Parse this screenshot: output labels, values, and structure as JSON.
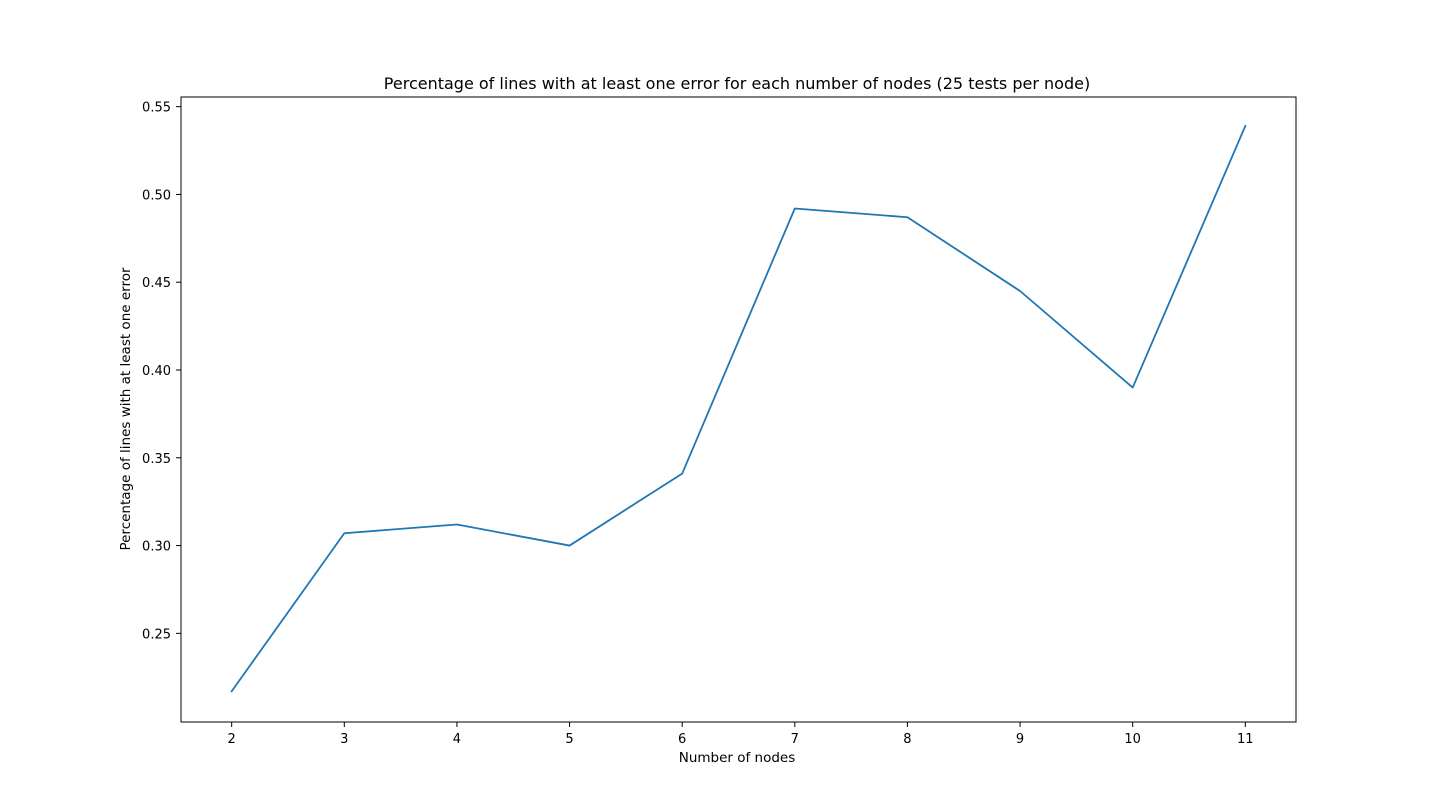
{
  "chart_data": {
    "type": "line",
    "title": "Percentage of lines with at least one error for each number of nodes (25 tests per node)",
    "xlabel": "Number of nodes",
    "ylabel": "Percentage of lines with at least one error",
    "x": [
      2,
      3,
      4,
      5,
      6,
      7,
      8,
      9,
      10,
      11
    ],
    "series": [
      {
        "values": [
          0.217,
          0.307,
          0.312,
          0.3,
          0.341,
          0.492,
          0.487,
          0.445,
          0.39,
          0.539
        ]
      }
    ],
    "xticks": [
      "2",
      "3",
      "4",
      "5",
      "6",
      "7",
      "8",
      "9",
      "10",
      "11"
    ],
    "yticks": [
      "0.25",
      "0.30",
      "0.35",
      "0.40",
      "0.45",
      "0.50",
      "0.55"
    ],
    "xlim": [
      1.55,
      11.45
    ],
    "ylim": [
      0.1995,
      0.5555
    ],
    "grid": false,
    "legend": "none",
    "line_color": "#1f77b4"
  }
}
